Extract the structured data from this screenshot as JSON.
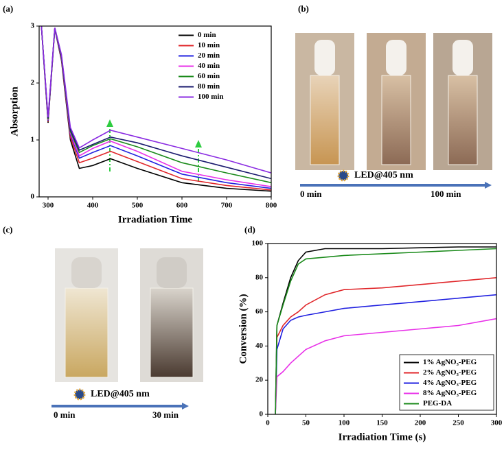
{
  "panel_labels": [
    "(a)",
    "(b)",
    "(c)",
    "(d)"
  ],
  "photo_b": {
    "light": "LED@405 nm",
    "start": "0 min",
    "end": "100 min"
  },
  "photo_c": {
    "light": "LED@405 nm",
    "start": "0 min",
    "end": "30 min"
  },
  "chart_data": [
    {
      "type": "line",
      "x_label": "Irradiation Time",
      "y_label": "Absorption",
      "x": [
        285,
        300,
        315,
        330,
        350,
        370,
        400,
        440,
        500,
        600,
        700,
        800
      ],
      "xlim": [
        280,
        800
      ],
      "ylim": [
        0,
        3
      ],
      "xticks": [
        300,
        400,
        500,
        600,
        700,
        800
      ],
      "yticks": [
        0,
        1,
        2,
        3
      ],
      "legend": "upper right",
      "series": [
        {
          "name": "0 min",
          "color": "#000000",
          "values": [
            3.0,
            1.3,
            2.95,
            2.4,
            1.0,
            0.5,
            0.55,
            0.67,
            0.5,
            0.25,
            0.15,
            0.1
          ]
        },
        {
          "name": "10 min",
          "color": "#e0262a",
          "values": [
            3.0,
            1.32,
            2.95,
            2.42,
            1.05,
            0.6,
            0.68,
            0.8,
            0.62,
            0.32,
            0.2,
            0.12
          ]
        },
        {
          "name": "20 min",
          "color": "#2020e0",
          "values": [
            3.0,
            1.34,
            2.95,
            2.44,
            1.1,
            0.68,
            0.78,
            0.9,
            0.72,
            0.4,
            0.25,
            0.15
          ]
        },
        {
          "name": "40 min",
          "color": "#e830e8",
          "values": [
            3.0,
            1.35,
            2.96,
            2.45,
            1.12,
            0.72,
            0.85,
            0.98,
            0.8,
            0.45,
            0.3,
            0.18
          ]
        },
        {
          "name": "60 min",
          "color": "#1a8a1a",
          "values": [
            3.0,
            1.36,
            2.96,
            2.46,
            1.15,
            0.78,
            0.9,
            1.02,
            0.88,
            0.6,
            0.42,
            0.25
          ]
        },
        {
          "name": "80 min",
          "color": "#1a1a6e",
          "values": [
            3.0,
            1.38,
            2.97,
            2.48,
            1.18,
            0.82,
            0.92,
            1.05,
            0.95,
            0.72,
            0.52,
            0.32
          ]
        },
        {
          "name": "100 min",
          "color": "#8a2be2",
          "values": [
            3.0,
            1.4,
            2.97,
            2.5,
            1.22,
            0.86,
            1.0,
            1.17,
            1.05,
            0.85,
            0.65,
            0.42
          ]
        }
      ]
    },
    {
      "type": "line",
      "x_label": "Irradiation Time (s)",
      "y_label": "Conversion (%)",
      "x": [
        10,
        12,
        20,
        30,
        40,
        50,
        75,
        100,
        150,
        200,
        250,
        300
      ],
      "xlim": [
        0,
        300
      ],
      "ylim": [
        0,
        100
      ],
      "xticks": [
        0,
        50,
        100,
        150,
        200,
        250,
        300
      ],
      "yticks": [
        0,
        20,
        40,
        60,
        80,
        100
      ],
      "legend": "lower right",
      "series": [
        {
          "name": "1% AgNO₃-PEG",
          "color": "#000000",
          "values": [
            0,
            52,
            65,
            80,
            90,
            95,
            97,
            97,
            97,
            97.5,
            98,
            98
          ]
        },
        {
          "name": "2% AgNO₃-PEG",
          "color": "#e0262a",
          "values": [
            0,
            45,
            52,
            57,
            60,
            64,
            70,
            73,
            74,
            76,
            78,
            80
          ]
        },
        {
          "name": "4% AgNO₃-PEG",
          "color": "#2020e0",
          "values": [
            0,
            38,
            50,
            55,
            57,
            58,
            60,
            62,
            64,
            66,
            68,
            70
          ]
        },
        {
          "name": "8% AgNO₃-PEG",
          "color": "#e830e8",
          "values": [
            0,
            22,
            25,
            30,
            34,
            38,
            43,
            46,
            48,
            50,
            52,
            56
          ]
        },
        {
          "name": "PEG-DA",
          "color": "#1a8a1a",
          "values": [
            0,
            52,
            64,
            78,
            88,
            91,
            92,
            93,
            94,
            95,
            96,
            97
          ]
        }
      ]
    }
  ]
}
